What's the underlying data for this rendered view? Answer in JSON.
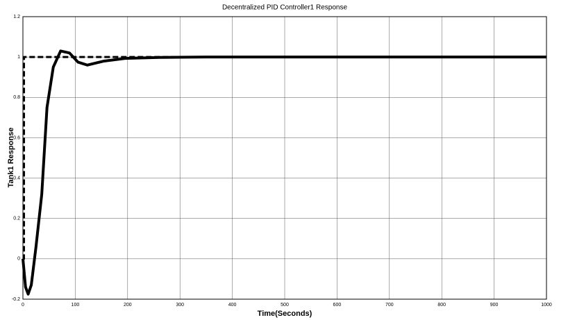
{
  "chart_data": {
    "type": "line",
    "title": "Decentralized PID Controller1 Response",
    "x_label": "Time(Seconds)",
    "y_label": "Tank1 Response",
    "xlim": [
      0,
      1000
    ],
    "ylim": [
      -0.2,
      1.2
    ],
    "xticks": [
      0,
      100,
      200,
      300,
      400,
      500,
      600,
      700,
      800,
      900,
      1000
    ],
    "yticks": [
      -0.2,
      0,
      0.2,
      0.4,
      0.6,
      0.8,
      1,
      1.2
    ],
    "grid": true,
    "series": [
      {
        "color": "#000000",
        "style": "solid",
        "x": [
          0,
          5,
          10,
          16,
          25,
          36,
          46,
          58,
          72,
          89,
          105,
          123,
          155,
          195,
          260,
          350,
          1000
        ],
        "values": [
          0,
          -0.14,
          -0.175,
          -0.13,
          0.06,
          0.32,
          0.75,
          0.95,
          1.03,
          1.02,
          0.975,
          0.96,
          0.98,
          0.993,
          0.998,
          1.0,
          1.0
        ]
      },
      {
        "color": "#000000",
        "style": "dashed",
        "x": [
          0,
          2,
          2,
          1000
        ],
        "values": [
          0,
          0,
          1,
          1
        ]
      }
    ]
  }
}
